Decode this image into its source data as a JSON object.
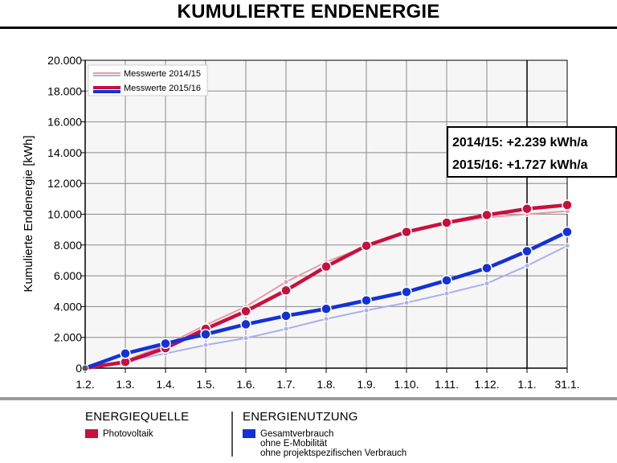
{
  "page": {
    "title": "KUMULIERTE ENDENERGIE"
  },
  "chart_data": {
    "type": "line",
    "title": "KUMULIERTE ENDENERGIE",
    "ylabel": "Kumulierte Endenergie [kWh]",
    "xlabel": "",
    "categories": [
      "1.2.",
      "1.3.",
      "1.4.",
      "1.5.",
      "1.6.",
      "1.7.",
      "1.8.",
      "1.9.",
      "1.10.",
      "1.11.",
      "1.12.",
      "1.1.",
      "31.1."
    ],
    "ylim": [
      0,
      20000
    ],
    "yticks": [
      0,
      2000,
      4000,
      6000,
      8000,
      10000,
      12000,
      14000,
      16000,
      18000,
      20000
    ],
    "ytick_labels": [
      "0",
      "2.000",
      "4.000",
      "6.000",
      "8.000",
      "10.000",
      "12.000",
      "14.000",
      "16.000",
      "18.000",
      "20.000"
    ],
    "grid": true,
    "series": [
      {
        "name": "Messwerte 2014/15",
        "group": "Photovoltaik",
        "color": "#e79aab",
        "style": "thin",
        "values": [
          0,
          500,
          1500,
          2800,
          4000,
          5600,
          6900,
          7900,
          8800,
          9400,
          9800,
          10000,
          10200
        ]
      },
      {
        "name": "Messwerte 2014/15",
        "group": "Gesamtverbrauch",
        "color": "#a8b0ee",
        "style": "thin",
        "values": [
          0,
          450,
          950,
          1500,
          1950,
          2550,
          3200,
          3750,
          4250,
          4850,
          5500,
          6650,
          7950
        ]
      },
      {
        "name": "Messwerte 2015/16",
        "group": "Photovoltaik",
        "color": "#c8103e",
        "style": "bold",
        "values": [
          0,
          400,
          1300,
          2550,
          3700,
          5050,
          6600,
          7950,
          8850,
          9450,
          9950,
          10350,
          10600
        ]
      },
      {
        "name": "Messwerte 2015/16",
        "group": "Gesamtverbrauch",
        "color": "#1531d6",
        "style": "bold",
        "values": [
          0,
          950,
          1600,
          2200,
          2850,
          3400,
          3850,
          4400,
          4950,
          5700,
          6500,
          7600,
          8850
        ]
      }
    ],
    "chart_legend": [
      {
        "label": "Messwerte 2014/15",
        "colors": [
          "#e79aab",
          "#a8b0ee"
        ]
      },
      {
        "label": "Messwerte 2015/16",
        "colors": [
          "#c8103e",
          "#1531d6"
        ]
      }
    ],
    "annotations": [
      "2014/15: +2.239 kWh/a",
      "2015/16: +1.727 kWh/a"
    ],
    "marker_line_at": "1.1."
  },
  "legend": {
    "source": {
      "heading": "ENERGIEQUELLE",
      "items": [
        {
          "label": "Photovoltaik",
          "color": "#c8103e"
        }
      ]
    },
    "usage": {
      "heading": "ENERGIENUTZUNG",
      "items": [
        {
          "label": "Gesamtverbrauch",
          "sublines": [
            "ohne E-Mobilität",
            "ohne projektspezifischen Verbrauch"
          ],
          "color": "#1531d6"
        }
      ]
    }
  }
}
